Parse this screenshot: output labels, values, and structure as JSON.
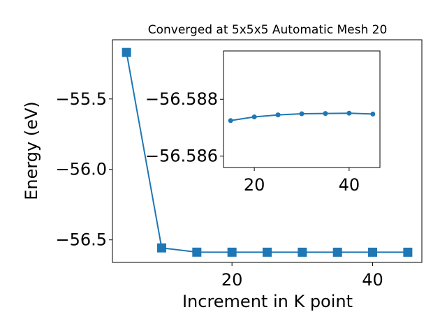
{
  "chart_data": [
    {
      "type": "line",
      "title": "Converged at 5x5x5 Automatic Mesh 20",
      "xlabel": "Increment in K point",
      "ylabel": "Energy (eV)",
      "x": [
        5,
        10,
        15,
        20,
        25,
        30,
        35,
        40,
        45
      ],
      "series": [
        {
          "values": [
            -55.17,
            -56.557,
            -56.5872,
            -56.5874,
            -56.5875,
            -56.5876,
            -56.5876,
            -56.5876,
            -56.5876
          ]
        }
      ],
      "xlim": [
        3.0,
        47.0
      ],
      "ylim": [
        -56.66,
        -55.08
      ],
      "xticks": [
        20,
        40
      ],
      "yticks": [
        -55.5,
        -56.0,
        -56.5
      ],
      "xtick_labels": [
        "20",
        "40"
      ],
      "ytick_labels": [
        "−55.5",
        "−56.0",
        "−56.5"
      ],
      "marker": "square",
      "color": "#1f77b4",
      "grid": false
    },
    {
      "type": "line",
      "title": "",
      "xlabel": "",
      "ylabel": "",
      "x": [
        15,
        20,
        25,
        30,
        35,
        40,
        45
      ],
      "series": [
        {
          "values": [
            -56.58725,
            -56.58738,
            -56.58745,
            -56.58749,
            -56.5875,
            -56.58751,
            -56.58748
          ]
        }
      ],
      "xlim": [
        13.5,
        46.5
      ],
      "ylim": [
        -56.5856,
        -56.5897
      ],
      "xticks": [
        20,
        40
      ],
      "yticks": [
        -56.588,
        -56.586
      ],
      "xtick_labels": [
        "20",
        "40"
      ],
      "ytick_labels": [
        "−56.588",
        "−56.586"
      ],
      "marker": "circle",
      "color": "#1f77b4",
      "grid": false
    }
  ]
}
